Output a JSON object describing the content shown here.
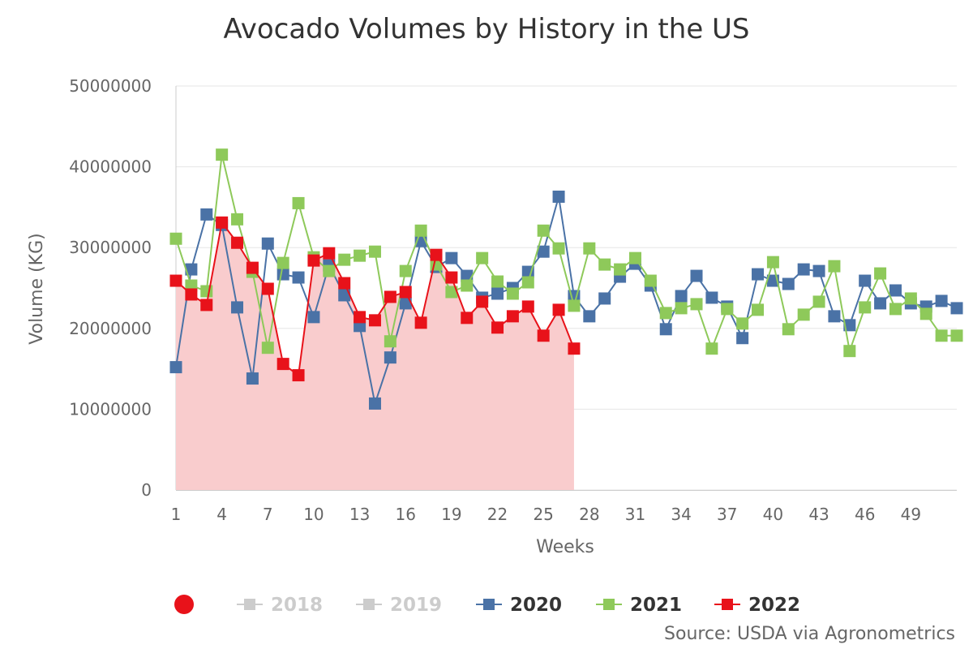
{
  "chart_data": {
    "type": "line",
    "title": "Avocado Volumes by History in the US",
    "xlabel": "Weeks",
    "ylabel": "Volume (KG)",
    "ylim": [
      0,
      50000000
    ],
    "yticks": [
      "0",
      "10000000",
      "20000000",
      "30000000",
      "40000000",
      "50000000"
    ],
    "ytick_values": [
      0,
      10000000,
      20000000,
      30000000,
      40000000,
      50000000
    ],
    "xlim": [
      1,
      52
    ],
    "xticks": [
      "1",
      "4",
      "7",
      "10",
      "13",
      "16",
      "19",
      "22",
      "25",
      "28",
      "31",
      "34",
      "37",
      "40",
      "43",
      "46",
      "49"
    ],
    "xtick_values": [
      1,
      4,
      7,
      10,
      13,
      16,
      19,
      22,
      25,
      28,
      31,
      34,
      37,
      40,
      43,
      46,
      49
    ],
    "legend_position": "bottom",
    "series": [
      {
        "name": "2018",
        "visible": false,
        "color": "#cccccc",
        "values": []
      },
      {
        "name": "2019",
        "visible": false,
        "color": "#cccccc",
        "values": []
      },
      {
        "name": "2020",
        "visible": true,
        "color": "#4a72a6",
        "marker": "square",
        "values": [
          15200000,
          27300000,
          34100000,
          32800000,
          22600000,
          13800000,
          30500000,
          26700000,
          26300000,
          21400000,
          27800000,
          24100000,
          20300000,
          10700000,
          16400000,
          23100000,
          30800000,
          27600000,
          28700000,
          26500000,
          23800000,
          24300000,
          25000000,
          27000000,
          29500000,
          36300000,
          24000000,
          21500000,
          23700000,
          26400000,
          28000000,
          25300000,
          19900000,
          24000000,
          26500000,
          23800000,
          22700000,
          18800000,
          26700000,
          25900000,
          25500000,
          27300000,
          27100000,
          21500000,
          20400000,
          25900000,
          23100000,
          24700000,
          23100000,
          22700000,
          23400000,
          22500000
        ]
      },
      {
        "name": "2021",
        "visible": true,
        "color": "#8ec95a",
        "marker": "square",
        "values": [
          31100000,
          25300000,
          24600000,
          41500000,
          33500000,
          27000000,
          17600000,
          28100000,
          35500000,
          28800000,
          27100000,
          28500000,
          29000000,
          29500000,
          18400000,
          27100000,
          32100000,
          27900000,
          24500000,
          25300000,
          28700000,
          25800000,
          24300000,
          25700000,
          32100000,
          29900000,
          22800000,
          29900000,
          27900000,
          27300000,
          28700000,
          25900000,
          21900000,
          22500000,
          23000000,
          17500000,
          22400000,
          20600000,
          22300000,
          28200000,
          19900000,
          21700000,
          23300000,
          27700000,
          17200000,
          22600000,
          26800000,
          22400000,
          23700000,
          21800000,
          19100000,
          19100000
        ]
      },
      {
        "name": "2022",
        "visible": true,
        "color": "#e8121a",
        "marker": "square",
        "area": true,
        "area_color": "#f9cccd",
        "values": [
          25900000,
          24200000,
          22900000,
          33100000,
          30600000,
          27500000,
          24900000,
          15600000,
          14200000,
          28400000,
          29300000,
          25600000,
          21400000,
          21000000,
          23900000,
          24500000,
          20700000,
          29100000,
          26300000,
          21300000,
          23300000,
          20100000,
          21500000,
          22700000,
          19100000,
          22300000,
          17500000
        ]
      }
    ],
    "legend_marker": {
      "shape": "circle",
      "color": "#e8121a"
    },
    "source": "Source: USDA via Agronometrics"
  }
}
